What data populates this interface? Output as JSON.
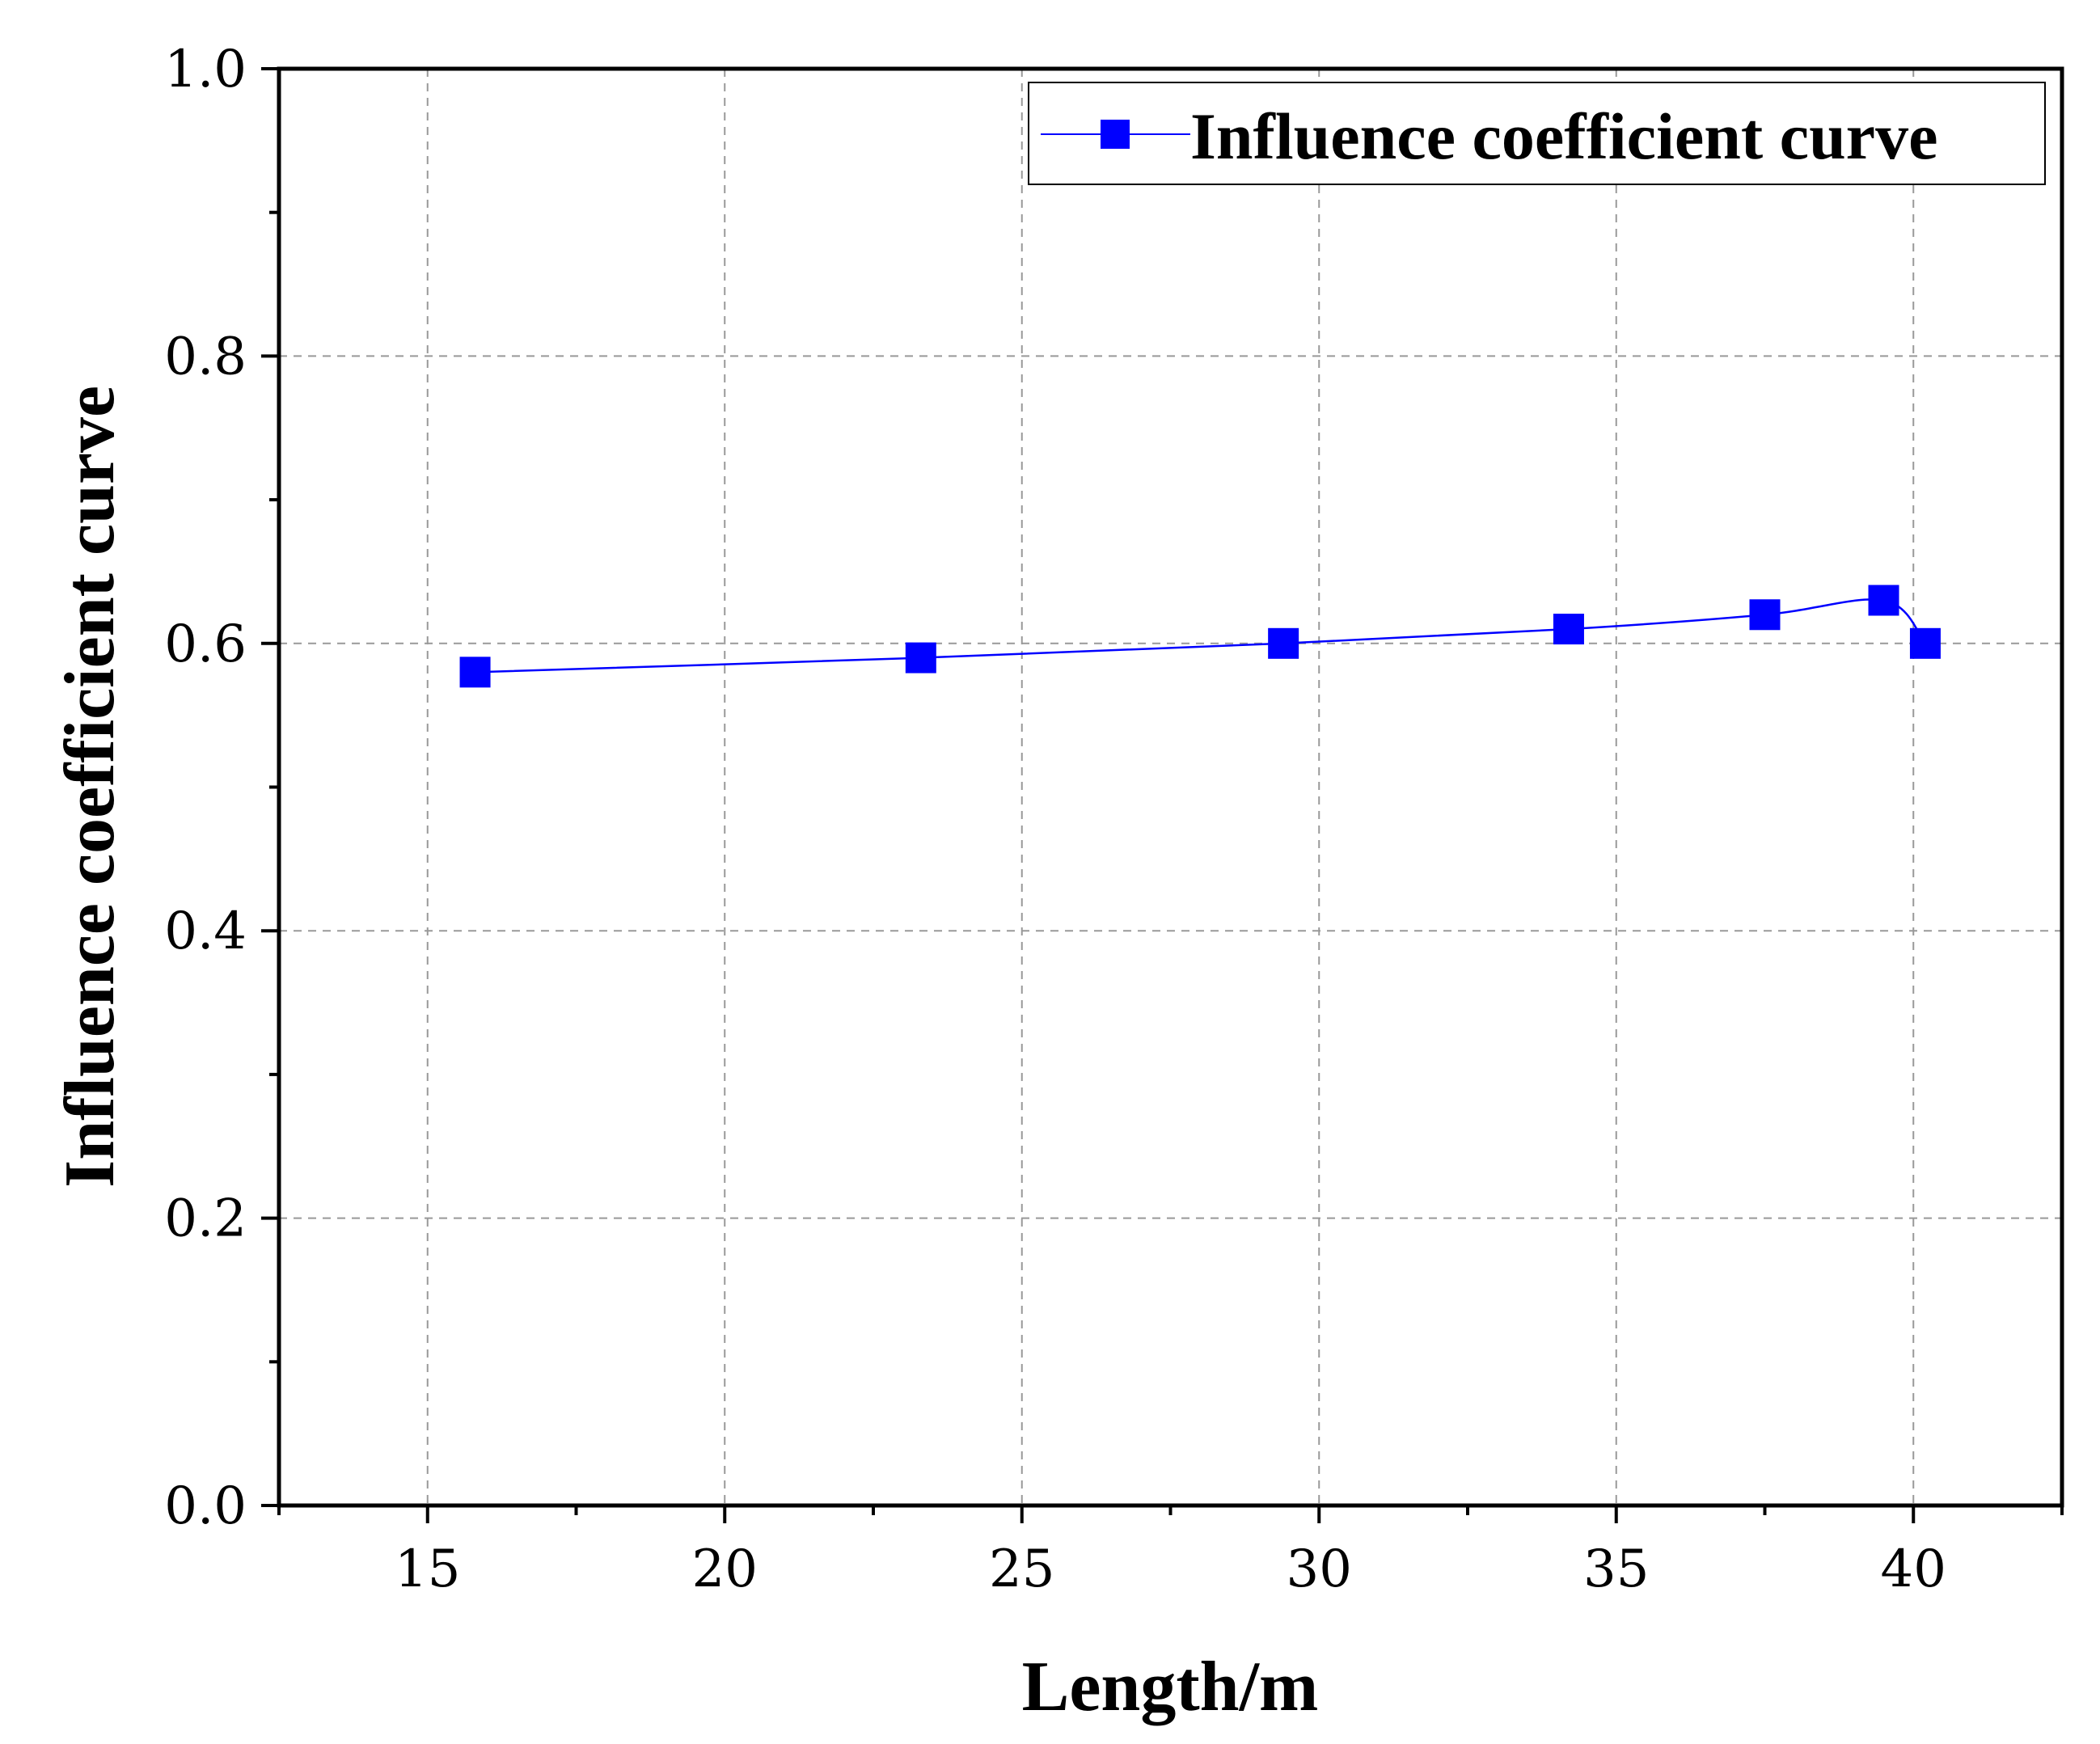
{
  "chart_data": {
    "type": "line",
    "xlabel": "Length/m",
    "ylabel": "Influence coefficient curve",
    "xlim": [
      12.5,
      42.5
    ],
    "ylim": [
      0.0,
      1.0
    ],
    "x_ticks": [
      15,
      20,
      25,
      30,
      35,
      40
    ],
    "x_tick_labels": [
      "15",
      "20",
      "25",
      "30",
      "35",
      "40"
    ],
    "y_ticks": [
      0.0,
      0.2,
      0.4,
      0.6,
      0.8,
      1.0
    ],
    "y_tick_labels": [
      "0.0",
      "0.2",
      "0.4",
      "0.6",
      "0.8",
      "1.0"
    ],
    "grid": true,
    "legend_position": "top-right",
    "series": [
      {
        "name": "Influence coefficient curve",
        "color": "#0000ff",
        "marker": "square",
        "line": "smooth",
        "x": [
          15.8,
          23.3,
          29.4,
          34.2,
          37.5,
          39.5,
          40.2
        ],
        "y": [
          0.58,
          0.59,
          0.6,
          0.61,
          0.62,
          0.63,
          0.6
        ]
      }
    ]
  }
}
